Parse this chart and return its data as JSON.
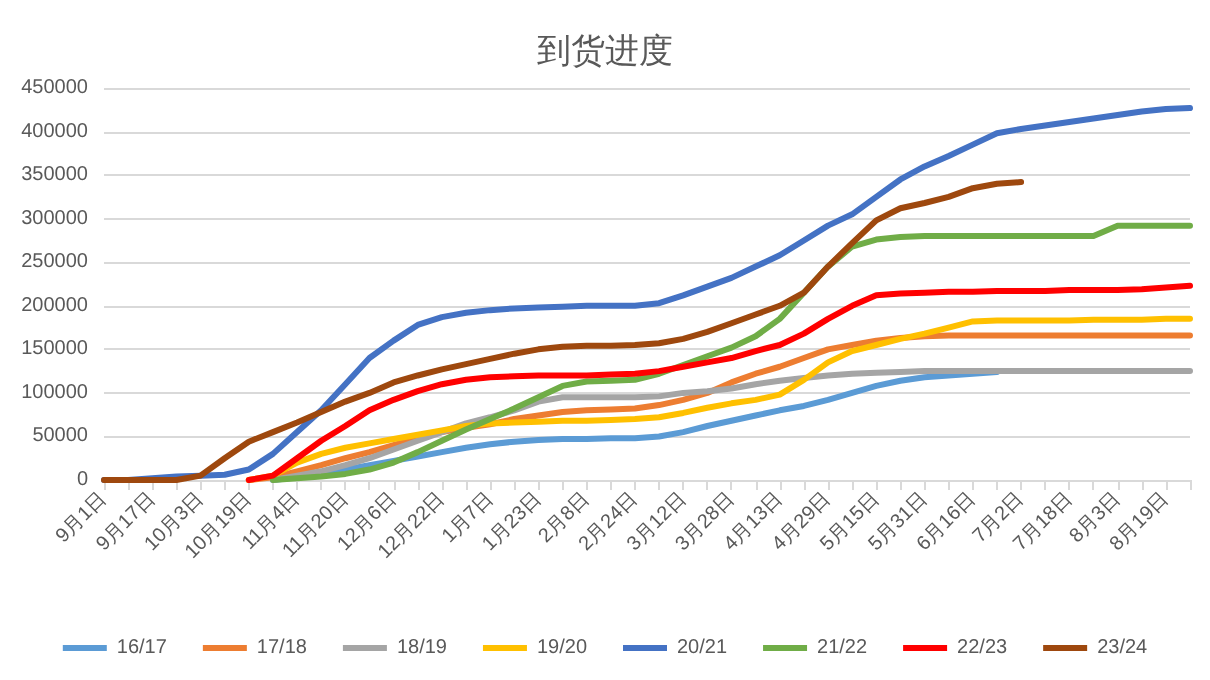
{
  "chart_data": {
    "type": "line",
    "title": "到货进度",
    "categories": [
      "9月1日",
      null,
      "9月17日",
      null,
      "10月3日",
      null,
      "10月19日",
      null,
      "11月4日",
      null,
      "11月20日",
      null,
      "12月6日",
      null,
      "12月22日",
      null,
      "1月7日",
      null,
      "1月23日",
      null,
      "2月8日",
      null,
      "2月24日",
      null,
      "3月12日",
      null,
      "3月28日",
      null,
      "4月13日",
      null,
      "4月29日",
      null,
      "5月15日",
      null,
      "5月31日",
      null,
      "6月16日",
      null,
      "7月2日",
      null,
      "7月18日",
      null,
      "8月3日",
      null,
      "8月19日",
      null
    ],
    "ylim": [
      0,
      450000
    ],
    "yticks": [
      0,
      50000,
      100000,
      150000,
      200000,
      250000,
      300000,
      350000,
      400000,
      450000
    ],
    "grid": "y",
    "legend": "bottom",
    "marker": "none",
    "line_style": "solid",
    "series": [
      {
        "name": "16/17",
        "color": "#5b9bd5",
        "values": [
          null,
          null,
          null,
          null,
          null,
          null,
          null,
          0,
          3000,
          7000,
          12000,
          17000,
          22000,
          27000,
          32000,
          37000,
          41000,
          44000,
          46000,
          47000,
          47000,
          48000,
          48000,
          50000,
          55000,
          62000,
          68000,
          74000,
          80000,
          85000,
          92000,
          100000,
          108000,
          114000,
          118000,
          120000,
          122000,
          124000,
          null,
          null,
          null,
          null,
          null,
          null,
          null,
          null
        ]
      },
      {
        "name": "17/18",
        "color": "#ed7d31",
        "values": [
          null,
          null,
          null,
          null,
          null,
          null,
          0,
          3000,
          10000,
          17000,
          25000,
          32000,
          40000,
          48000,
          55000,
          60000,
          64000,
          70000,
          74000,
          78000,
          80000,
          81000,
          82000,
          86000,
          92000,
          100000,
          112000,
          122000,
          130000,
          140000,
          150000,
          155000,
          160000,
          163000,
          165000,
          166000,
          166000,
          166000,
          166000,
          166000,
          166000,
          166000,
          166000,
          166000,
          166000,
          166000
        ]
      },
      {
        "name": "18/19",
        "color": "#a5a5a5",
        "values": [
          null,
          null,
          null,
          null,
          null,
          null,
          null,
          0,
          5000,
          10000,
          17000,
          25000,
          35000,
          45000,
          55000,
          65000,
          72000,
          80000,
          90000,
          95000,
          95000,
          95000,
          95000,
          96000,
          100000,
          102000,
          105000,
          110000,
          114000,
          117000,
          120000,
          122000,
          123000,
          124000,
          125000,
          125000,
          125000,
          125000,
          125000,
          125000,
          125000,
          125000,
          125000,
          125000,
          125000,
          125000
        ]
      },
      {
        "name": "19/20",
        "color": "#ffc000",
        "values": [
          null,
          null,
          null,
          null,
          null,
          null,
          0,
          5000,
          20000,
          30000,
          37000,
          42000,
          47000,
          52000,
          57000,
          62000,
          65000,
          66000,
          67000,
          68000,
          68000,
          69000,
          70000,
          72000,
          77000,
          83000,
          88000,
          92000,
          98000,
          115000,
          135000,
          148000,
          155000,
          162000,
          168000,
          175000,
          182000,
          183000,
          183000,
          183000,
          183000,
          184000,
          184000,
          184000,
          185000,
          185000
        ]
      },
      {
        "name": "20/21",
        "color": "#4472c4",
        "values": [
          0,
          0,
          2000,
          4000,
          5000,
          6000,
          12000,
          30000,
          55000,
          80000,
          110000,
          140000,
          160000,
          178000,
          187000,
          192000,
          195000,
          197000,
          198000,
          199000,
          200000,
          200000,
          200000,
          203000,
          212000,
          222000,
          232000,
          245000,
          258000,
          275000,
          292000,
          305000,
          325000,
          345000,
          360000,
          372000,
          385000,
          398000,
          403000,
          407000,
          411000,
          415000,
          419000,
          423000,
          426000,
          427000
        ]
      },
      {
        "name": "21/22",
        "color": "#70ad47",
        "values": [
          null,
          null,
          null,
          null,
          null,
          null,
          null,
          0,
          2000,
          4000,
          7000,
          12000,
          20000,
          32000,
          45000,
          58000,
          70000,
          82000,
          95000,
          108000,
          113000,
          114000,
          115000,
          122000,
          132000,
          142000,
          152000,
          165000,
          185000,
          215000,
          245000,
          268000,
          276000,
          279000,
          280000,
          280000,
          280000,
          280000,
          280000,
          280000,
          280000,
          280000,
          292000,
          292000,
          292000,
          292000
        ]
      },
      {
        "name": "22/23",
        "color": "#ff0000",
        "values": [
          null,
          null,
          null,
          null,
          null,
          null,
          0,
          5000,
          25000,
          45000,
          62000,
          80000,
          92000,
          102000,
          110000,
          115000,
          118000,
          119000,
          120000,
          120000,
          120000,
          121000,
          122000,
          125000,
          130000,
          135000,
          140000,
          148000,
          155000,
          168000,
          185000,
          200000,
          212000,
          214000,
          215000,
          216000,
          216000,
          217000,
          217000,
          217000,
          218000,
          218000,
          218000,
          219000,
          221000,
          223000
        ]
      },
      {
        "name": "23/24",
        "color": "#9e480e",
        "values": [
          0,
          0,
          0,
          0,
          5000,
          25000,
          44000,
          55000,
          66000,
          78000,
          90000,
          100000,
          112000,
          120000,
          127000,
          133000,
          139000,
          145000,
          150000,
          153000,
          154000,
          154000,
          155000,
          157000,
          162000,
          170000,
          180000,
          190000,
          200000,
          215000,
          245000,
          272000,
          298000,
          312000,
          318000,
          325000,
          335000,
          340000,
          342000,
          null,
          null,
          null,
          null,
          null,
          null,
          null
        ]
      }
    ]
  }
}
